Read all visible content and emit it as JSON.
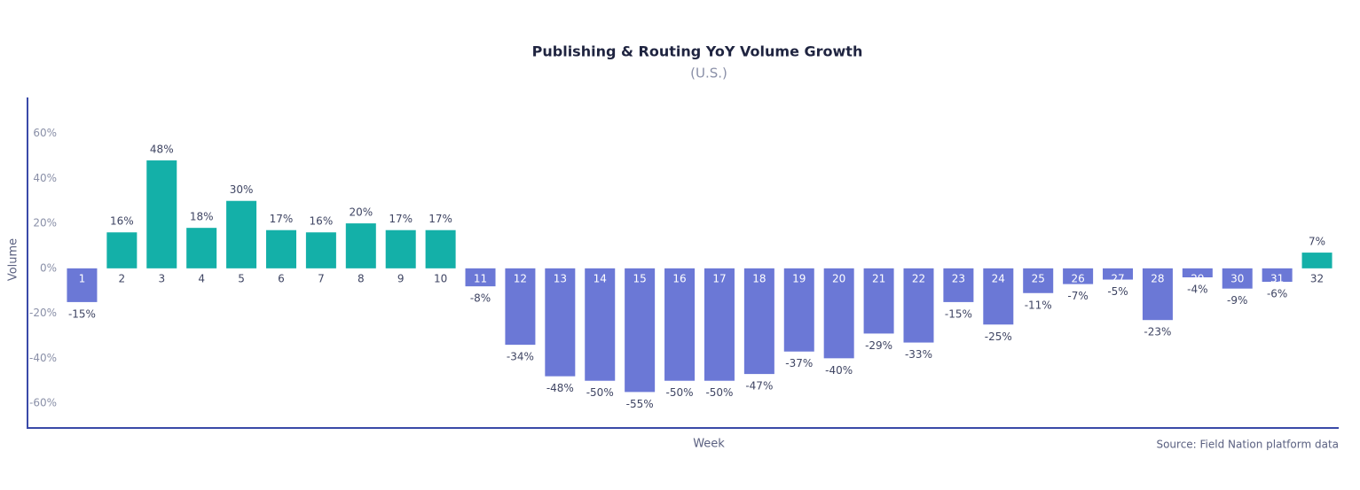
{
  "chart_data": {
    "type": "bar",
    "title": "Publishing & Routing YoY Volume Growth",
    "subtitle": "(U.S.)",
    "x_label": "Week",
    "y_label": "Volume",
    "source": "Source: Field Nation platform data",
    "categories": [
      "1",
      "2",
      "3",
      "4",
      "5",
      "6",
      "7",
      "8",
      "9",
      "10",
      "11",
      "12",
      "13",
      "14",
      "15",
      "16",
      "17",
      "18",
      "19",
      "20",
      "21",
      "22",
      "23",
      "24",
      "25",
      "26",
      "27",
      "28",
      "29",
      "30",
      "31",
      "32"
    ],
    "values": [
      -15,
      16,
      48,
      18,
      30,
      17,
      16,
      20,
      17,
      17,
      -8,
      -34,
      -48,
      -50,
      -55,
      -50,
      -50,
      -47,
      -37,
      -40,
      -29,
      -33,
      -15,
      -25,
      -11,
      -7,
      -5,
      -23,
      -4,
      -9,
      -6,
      7
    ],
    "value_labels": [
      "-15%",
      "16%",
      "48%",
      "18%",
      "30%",
      "17%",
      "16%",
      "20%",
      "17%",
      "17%",
      "-8%",
      "-34%",
      "-48%",
      "-50%",
      "-55%",
      "-50%",
      "-50%",
      "-47%",
      "-37%",
      "-40%",
      "-29%",
      "-33%",
      "-15%",
      "-25%",
      "-11%",
      "-7%",
      "-5%",
      "-23%",
      "-4%",
      "-9%",
      "-6%",
      "7%"
    ],
    "positive_color": "#14b0a8",
    "negative_color": "#6b78d6",
    "ylim": [
      -71,
      76
    ],
    "yticks": [
      {
        "value": -60,
        "label": "-60%"
      },
      {
        "value": -40,
        "label": "-40%"
      },
      {
        "value": -20,
        "label": "-20%"
      },
      {
        "value": 0,
        "label": "0%"
      },
      {
        "value": 20,
        "label": "20%"
      },
      {
        "value": 40,
        "label": "40%"
      },
      {
        "value": 60,
        "label": "60%"
      }
    ],
    "grid": false
  }
}
